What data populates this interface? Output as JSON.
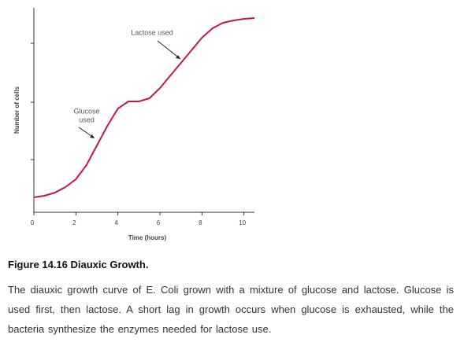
{
  "chart_data": {
    "type": "line",
    "xlabel": "Time (hours)",
    "ylabel": "Number of cells",
    "x": [
      0,
      0.5,
      1,
      1.5,
      2,
      2.5,
      3,
      3.5,
      4,
      4.5,
      5,
      5.5,
      6,
      6.5,
      7,
      7.5,
      8,
      8.5,
      9,
      9.5,
      10,
      10.5
    ],
    "series": [
      {
        "color": "#c8164d",
        "values": [
          19,
          21,
          25,
          32,
          42,
          60,
          85,
          110,
          132,
          141,
          141,
          145,
          158,
          174,
          190,
          206,
          222,
          234,
          241,
          244,
          246,
          247
        ]
      }
    ],
    "xlim": [
      0,
      10.5
    ],
    "xticks": [
      0,
      2,
      4,
      6,
      8,
      10
    ],
    "ylim": [
      0,
      260
    ],
    "yticks": [
      67,
      140,
      215
    ],
    "annotations": [
      {
        "text": [
          "Lactose used"
        ]
      },
      {
        "text": [
          "Glucose",
          "used"
        ]
      }
    ]
  },
  "caption": {
    "title": "Figure 14.16 Diauxic Growth.",
    "text": "The diauxic growth curve of E. Coli grown with a mixture of glucose and lactose. Glucose is used first, then lactose. A short lag in growth occurs when glucose is exhausted, while the bacteria synthesize the enzymes needed for lactose use."
  }
}
